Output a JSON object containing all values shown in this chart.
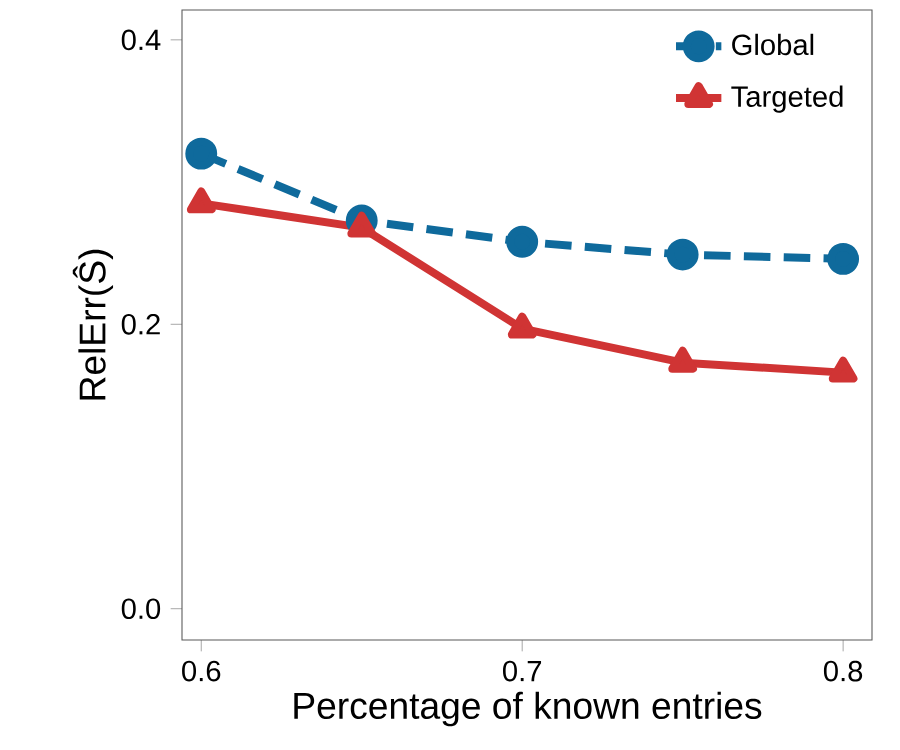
{
  "chart_data": {
    "type": "line",
    "xlabel": "Percentage of known entries",
    "ylabel": "RelErr(Ŝ)",
    "x": [
      0.6,
      0.65,
      0.7,
      0.75,
      0.8
    ],
    "series": [
      {
        "name": "Global",
        "color": "#0f6a9c",
        "marker": "circle",
        "line_style": "dashed",
        "values": [
          0.32,
          0.273,
          0.258,
          0.249,
          0.246
        ]
      },
      {
        "name": "Targeted",
        "color": "#d03434",
        "marker": "triangle",
        "line_style": "solid",
        "values": [
          0.285,
          0.268,
          0.197,
          0.173,
          0.166
        ]
      }
    ],
    "xlim": [
      0.594,
      0.809
    ],
    "ylim": [
      -0.022,
      0.421
    ],
    "xticks": [
      0.6,
      0.7,
      0.8
    ],
    "yticks": [
      {
        "value": 0,
        "label": "0.0"
      },
      {
        "value": 0.2,
        "label": "0.2"
      },
      {
        "value": 0.4,
        "label": "0.4"
      }
    ],
    "grid": false,
    "legend": "top right"
  }
}
